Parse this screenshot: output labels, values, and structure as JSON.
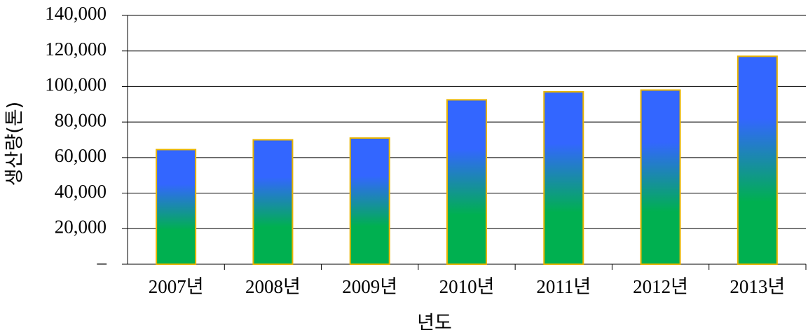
{
  "chart_data": {
    "type": "bar",
    "xlabel": "년도",
    "ylabel": "생산량(톤)",
    "categories": [
      "2007년",
      "2008년",
      "2009년",
      "2010년",
      "2011년",
      "2012년",
      "2013년"
    ],
    "values": [
      64500,
      70000,
      71000,
      92500,
      97000,
      98000,
      117000
    ],
    "color_top": "#3366ff",
    "color_bottom": "#00b050",
    "edgecolor": "#e8b400",
    "ylim": [
      0,
      140000
    ],
    "yticks": [
      {
        "value": 0,
        "label": "–"
      },
      {
        "value": 20000,
        "label": "20,000"
      },
      {
        "value": 40000,
        "label": "40,000"
      },
      {
        "value": 60000,
        "label": "60,000"
      },
      {
        "value": 80000,
        "label": "80,000"
      },
      {
        "value": 100000,
        "label": "100,000"
      },
      {
        "value": 120000,
        "label": "120,000"
      },
      {
        "value": 140000,
        "label": "140,000"
      }
    ],
    "grid": true
  }
}
